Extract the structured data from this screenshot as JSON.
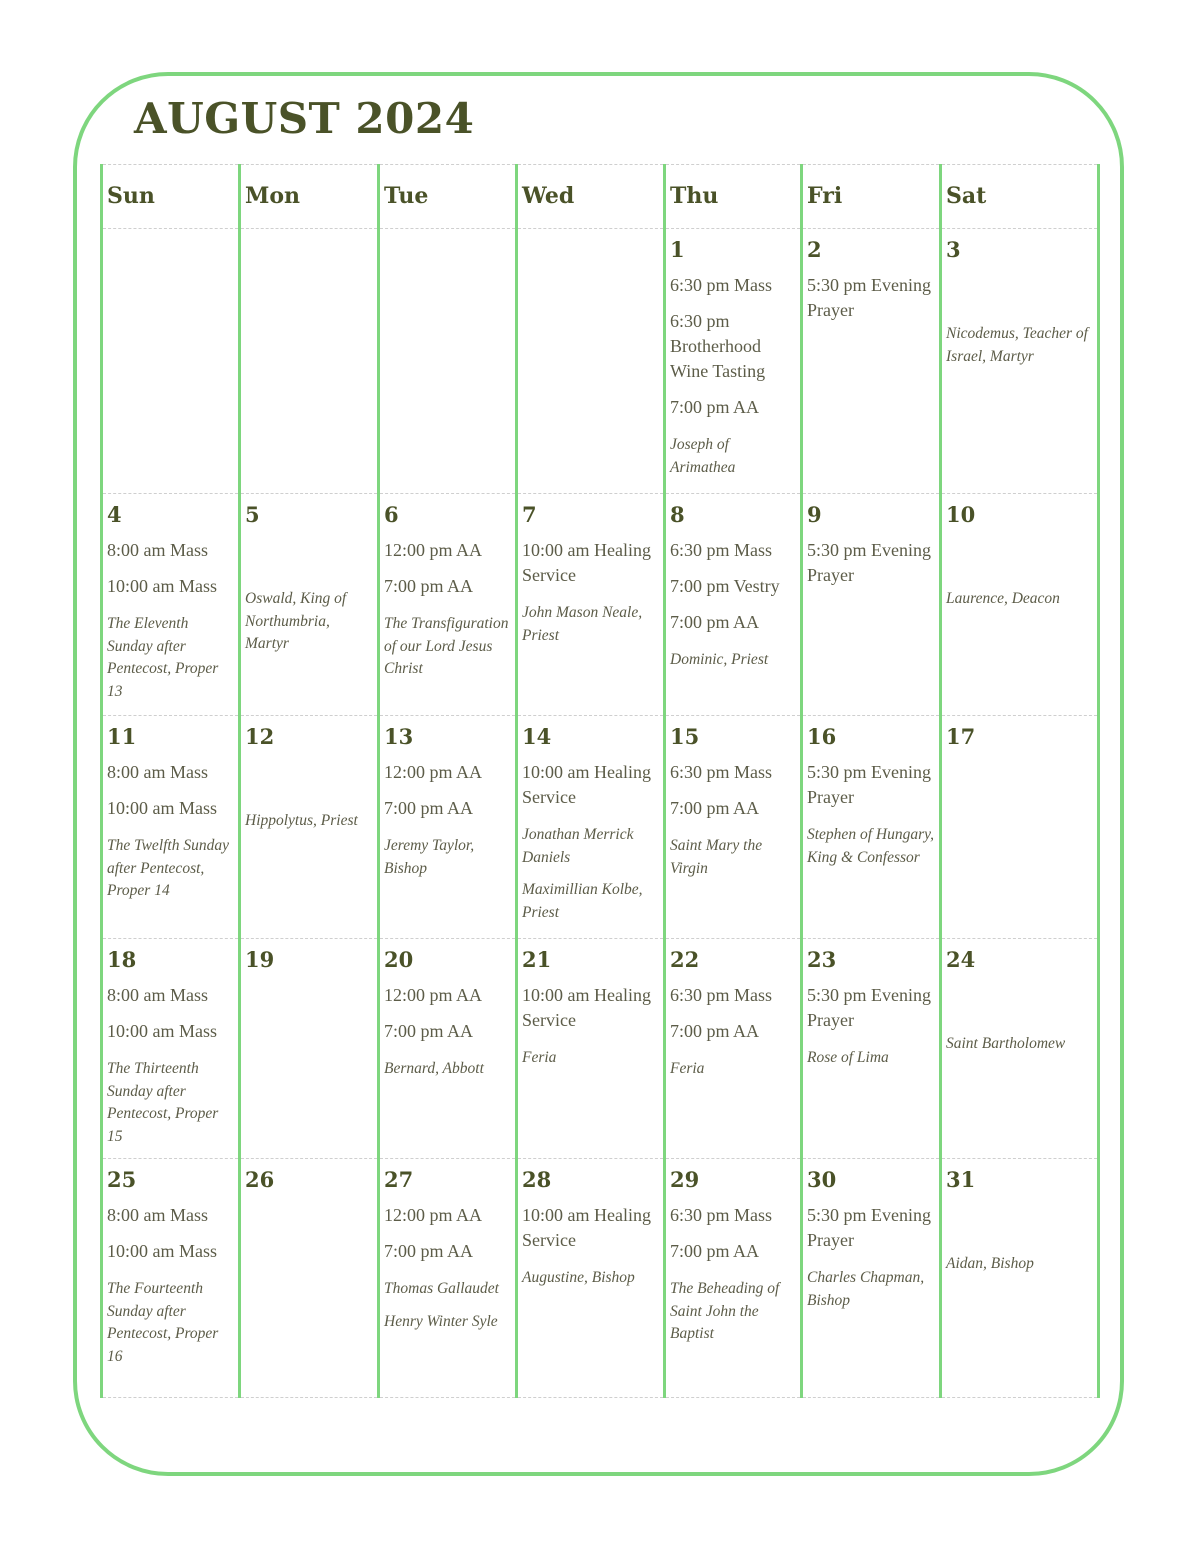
{
  "title": "AUGUST 2024",
  "colors": {
    "border": "#7ed67e",
    "heading": "#4a5228",
    "text": "#5c5c48"
  },
  "weekdays": [
    "Sun",
    "Mon",
    "Tue",
    "Wed",
    "Thu",
    "Fri",
    "Sat"
  ],
  "weeks": [
    [
      {
        "day": "",
        "events": [],
        "feasts": []
      },
      {
        "day": "",
        "events": [],
        "feasts": []
      },
      {
        "day": "",
        "events": [],
        "feasts": []
      },
      {
        "day": "",
        "events": [],
        "feasts": []
      },
      {
        "day": "1",
        "events": [
          "6:30 pm Mass",
          "6:30 pm Brotherhood Wine Tasting",
          "7:00 pm AA"
        ],
        "feasts": [
          "Joseph of Arimathea"
        ]
      },
      {
        "day": "2",
        "events": [
          "5:30 pm Evening Prayer"
        ],
        "feasts": []
      },
      {
        "day": "3",
        "events": [],
        "feasts": [
          "Nicodemus, Teacher of Israel, Martyr"
        ]
      }
    ],
    [
      {
        "day": "4",
        "events": [
          "8:00 am Mass",
          "10:00 am Mass"
        ],
        "feasts": [
          "The Eleventh Sunday after Pentecost, Proper 13"
        ]
      },
      {
        "day": "5",
        "events": [],
        "feasts": [
          "Oswald, King of Northumbria, Martyr"
        ]
      },
      {
        "day": "6",
        "events": [
          "12:00 pm AA",
          "7:00 pm AA"
        ],
        "feasts": [
          "The Transfiguration of our Lord Jesus Christ"
        ]
      },
      {
        "day": "7",
        "events": [
          "10:00 am Healing Service"
        ],
        "feasts": [
          "John Mason Neale, Priest"
        ]
      },
      {
        "day": "8",
        "events": [
          "6:30 pm Mass",
          "7:00 pm Vestry",
          "7:00 pm AA"
        ],
        "feasts": [
          "Dominic, Priest"
        ]
      },
      {
        "day": "9",
        "events": [
          "5:30 pm Evening Prayer"
        ],
        "feasts": []
      },
      {
        "day": "10",
        "events": [],
        "feasts": [
          "Laurence, Deacon"
        ]
      }
    ],
    [
      {
        "day": "11",
        "events": [
          "8:00 am Mass",
          "10:00 am Mass"
        ],
        "feasts": [
          "The Twelfth Sunday after Pentecost, Proper 14"
        ]
      },
      {
        "day": "12",
        "events": [],
        "feasts": [
          "Hippolytus, Priest"
        ]
      },
      {
        "day": "13",
        "events": [
          "12:00 pm AA",
          "7:00 pm AA"
        ],
        "feasts": [
          "Jeremy Taylor, Bishop"
        ]
      },
      {
        "day": "14",
        "events": [
          "10:00 am Healing Service"
        ],
        "feasts": [
          "Jonathan Merrick Daniels",
          "Maximillian Kolbe, Priest"
        ]
      },
      {
        "day": "15",
        "events": [
          "6:30 pm Mass",
          "7:00 pm AA"
        ],
        "feasts": [
          "Saint Mary the Virgin"
        ]
      },
      {
        "day": "16",
        "events": [
          "5:30 pm Evening Prayer"
        ],
        "feasts": [
          "Stephen of Hungary, King & Confessor"
        ]
      },
      {
        "day": "17",
        "events": [],
        "feasts": []
      }
    ],
    [
      {
        "day": "18",
        "events": [
          "8:00 am Mass",
          "10:00 am Mass"
        ],
        "feasts": [
          "The Thirteenth Sunday after Pentecost, Proper 15"
        ]
      },
      {
        "day": "19",
        "events": [],
        "feasts": []
      },
      {
        "day": "20",
        "events": [
          "12:00 pm AA",
          "7:00 pm AA"
        ],
        "feasts": [
          "Bernard, Abbott"
        ]
      },
      {
        "day": "21",
        "events": [
          "10:00 am Healing Service"
        ],
        "feasts": [
          "Feria"
        ]
      },
      {
        "day": "22",
        "events": [
          "6:30 pm Mass",
          "7:00 pm AA"
        ],
        "feasts": [
          "Feria"
        ]
      },
      {
        "day": "23",
        "events": [
          "5:30 pm Evening Prayer"
        ],
        "feasts": [
          "Rose of Lima"
        ]
      },
      {
        "day": "24",
        "events": [],
        "feasts": [
          "Saint Bartholomew"
        ]
      }
    ],
    [
      {
        "day": "25",
        "events": [
          "8:00 am Mass",
          "10:00 am Mass"
        ],
        "feasts": [
          "The Fourteenth Sunday after Pentecost, Proper 16"
        ]
      },
      {
        "day": "26",
        "events": [],
        "feasts": []
      },
      {
        "day": "27",
        "events": [
          "12:00 pm AA",
          "7:00 pm AA"
        ],
        "feasts": [
          "Thomas Gallaudet",
          "Henry Winter Syle"
        ]
      },
      {
        "day": "28",
        "events": [
          "10:00 am Healing Service"
        ],
        "feasts": [
          "Augustine, Bishop"
        ]
      },
      {
        "day": "29",
        "events": [
          "6:30 pm Mass",
          "7:00 pm AA"
        ],
        "feasts": [
          "The Beheading of Saint John the Baptist"
        ]
      },
      {
        "day": "30",
        "events": [
          "5:30 pm Evening Prayer"
        ],
        "feasts": [
          "Charles Chapman, Bishop"
        ]
      },
      {
        "day": "31",
        "events": [],
        "feasts": [
          "Aidan, Bishop"
        ]
      }
    ]
  ]
}
